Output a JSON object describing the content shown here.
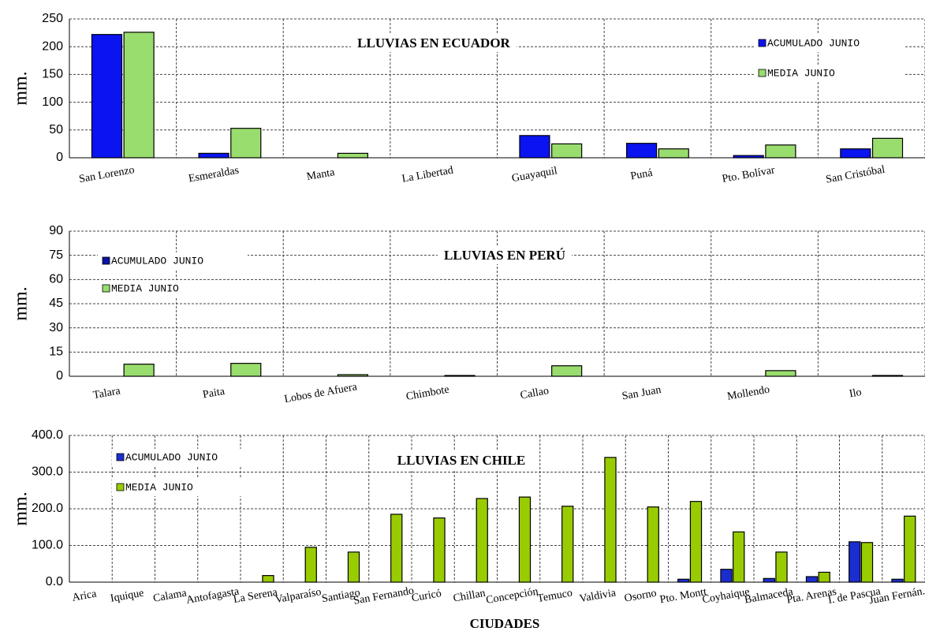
{
  "chart_data": [
    {
      "type": "bar",
      "title": "LLUVIAS EN ECUADOR",
      "ylabel": "mm.",
      "categories": [
        "San Lorenzo",
        "Esmeraldas",
        "Manta",
        "La Libertad",
        "Guayaquil",
        "Puná",
        "Pto. Bolívar",
        "San Cristóbal"
      ],
      "series": [
        {
          "name": "ACUMULADO JUNIO",
          "color": "#0a14f0",
          "values": [
            222,
            8,
            0,
            0,
            40,
            26,
            4,
            16
          ]
        },
        {
          "name": "MEDIA JUNIO",
          "color": "#99dd6e",
          "values": [
            226,
            53,
            8,
            0,
            25,
            16,
            23,
            35
          ]
        }
      ],
      "ylim": [
        0,
        250
      ],
      "yticks": [
        0,
        50,
        100,
        150,
        200,
        250
      ],
      "grid": true,
      "legend": "upper right"
    },
    {
      "type": "bar",
      "title": "LLUVIAS EN PERÚ",
      "ylabel": "mm.",
      "categories": [
        "Talara",
        "Paita",
        "Lobos de Afuera",
        "Chimbote",
        "Callao",
        "San Juan",
        "Mollendo",
        "Ilo"
      ],
      "series": [
        {
          "name": "ACUMULADO JUNIO",
          "color": "#0a14a0",
          "values": [
            0,
            0,
            0,
            0,
            0,
            0,
            0,
            0
          ]
        },
        {
          "name": "MEDIA JUNIO",
          "color": "#99dd6e",
          "values": [
            7.5,
            8,
            1,
            0.5,
            6.5,
            0,
            3.5,
            0.5
          ]
        }
      ],
      "ylim": [
        0,
        90
      ],
      "yticks": [
        0,
        15,
        30,
        45,
        60,
        75,
        90
      ],
      "grid": true,
      "legend": "upper left"
    },
    {
      "type": "bar",
      "title": "LLUVIAS EN CHILE",
      "ylabel": "mm.",
      "xlabel": "CIUDADES",
      "categories": [
        "Arica",
        "Iquique",
        "Calama",
        "Antofagasta",
        "La Serena",
        "Valparaíso",
        "Santiago",
        "San Fernando",
        "Curicó",
        "Chillan",
        "Concepción",
        "Temuco",
        "Valdivia",
        "Osorno",
        "Pto. Montt",
        "Coyhaique",
        "Balmaceda",
        "Pta. Arenas",
        "I. de Pascua",
        "Juan Fernán."
      ],
      "series": [
        {
          "name": "ACUMULADO JUNIO",
          "color": "#1a2ed0",
          "values": [
            0,
            0,
            0,
            0,
            0,
            0,
            0,
            0,
            0,
            0,
            0,
            0,
            0,
            0,
            8,
            35,
            10,
            15,
            110,
            8
          ]
        },
        {
          "name": "MEDIA JUNIO",
          "color": "#99cc00",
          "values": [
            0,
            0,
            0,
            0,
            18,
            95,
            82,
            185,
            175,
            228,
            232,
            207,
            340,
            205,
            220,
            137,
            82,
            27,
            108,
            180
          ]
        }
      ],
      "ylim": [
        0,
        400
      ],
      "yticks": [
        {
          "value": 0,
          "label": "0.0"
        },
        {
          "value": 100,
          "label": "100.0"
        },
        {
          "value": 200,
          "label": "200.0"
        },
        {
          "value": 300,
          "label": "300.0"
        },
        {
          "value": 400,
          "label": "400.0"
        }
      ],
      "grid": true,
      "legend": "upper left"
    }
  ]
}
